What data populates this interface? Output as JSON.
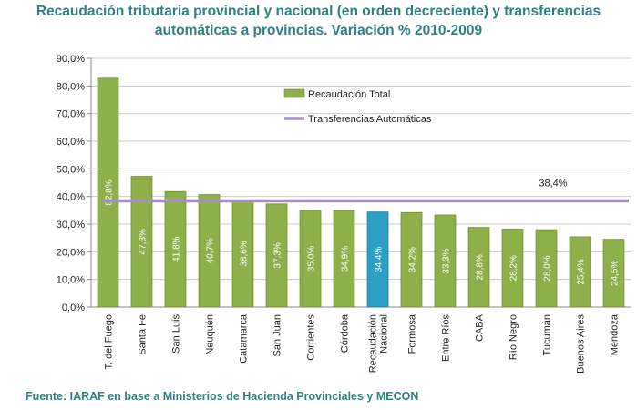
{
  "title_line1": "Recaudación tributaria provincial y nacional (en orden decreciente) y transferencias",
  "title_line2": "automáticas a provincias. Variación % 2010-2009",
  "source": "Fuente: IARAF en base a Ministerios de Hacienda Provinciales y MECON",
  "colors": {
    "bar": "#8db04a",
    "highlight": "#2e9fc4",
    "line": "#a58ec0",
    "title": "#2e7f86"
  },
  "chart_data": {
    "type": "bar",
    "categories": [
      "T. del Fuego",
      "Santa Fe",
      "San Luis",
      "Neuquén",
      "Catamarca",
      "San Juan",
      "Corrientes",
      "Córdoba",
      "Recaudación Nacional",
      "Formosa",
      "Entre Ríos",
      "CABA",
      "Río Negro",
      "Tucumán",
      "Buenos Aires",
      "Mendoza"
    ],
    "highlight_category": "Recaudación Nacional",
    "series": [
      {
        "name": "Recaudación Total",
        "values": [
          82.8,
          47.3,
          41.8,
          40.7,
          38.6,
          37.3,
          35.0,
          34.9,
          34.4,
          34.2,
          33.3,
          28.8,
          28.2,
          28.0,
          25.4,
          24.5
        ]
      }
    ],
    "value_labels": [
      "82,8%",
      "47,3%",
      "41,8%",
      "40,7%",
      "38,6%",
      "37,3%",
      "35,0%",
      "34,9%",
      "34,4%",
      "34,2%",
      "33,3%",
      "28,8%",
      "28,2%",
      "28,0%",
      "25,4%",
      "24,5%"
    ],
    "reference_line": {
      "name": "Transferencias Automáticas",
      "value": 38.4,
      "label": "38,4%"
    },
    "ylim": [
      0,
      90
    ],
    "yticks": [
      0,
      10,
      20,
      30,
      40,
      50,
      60,
      70,
      80,
      90
    ],
    "ytick_labels": [
      "0,0%",
      "10,0%",
      "20,0%",
      "30,0%",
      "40,0%",
      "50,0%",
      "60,0%",
      "70,0%",
      "80,0%",
      "90,0%"
    ],
    "grid": true,
    "legend_position": "top-center"
  }
}
